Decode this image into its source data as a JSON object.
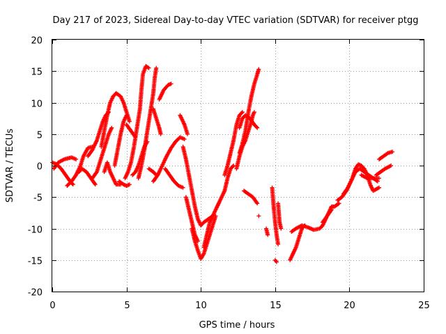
{
  "chart_data": {
    "type": "scatter",
    "title": "Day 217 of 2023, Sidereal Day-to-day VTEC variation (SDTVAR) for receiver ptgg",
    "xlabel": "GPS time / hours",
    "ylabel": "SDTVAR / TECUs",
    "xlim": [
      0,
      25
    ],
    "ylim": [
      -20,
      20
    ],
    "xticks": [
      "0",
      "5",
      "10",
      "15",
      "20",
      "25"
    ],
    "yticks": [
      "-20",
      "-15",
      "-10",
      "-5",
      "0",
      "5",
      "10",
      "15",
      "20"
    ],
    "grid": true,
    "marker": "plus",
    "colors": {
      "series": "#ff0000",
      "grid": "#a0a0a0",
      "axis": "#000000"
    },
    "series": [
      {
        "tracks": [
          [
            [
              0.0,
              0.5
            ],
            [
              0.3,
              0.2
            ],
            [
              0.6,
              -0.5
            ],
            [
              0.9,
              -1.5
            ],
            [
              1.2,
              -2.5
            ],
            [
              1.4,
              -3.0
            ]
          ],
          [
            [
              0.1,
              -0.5
            ],
            [
              0.4,
              0.5
            ],
            [
              0.8,
              1.0
            ],
            [
              1.3,
              1.3
            ],
            [
              1.6,
              1.0
            ]
          ],
          [
            [
              1.0,
              -3.2
            ],
            [
              1.3,
              -2.5
            ],
            [
              1.6,
              -1.5
            ],
            [
              1.9,
              0.0
            ],
            [
              2.1,
              1.5
            ],
            [
              2.4,
              2.8
            ],
            [
              2.7,
              3.0
            ]
          ],
          [
            [
              1.8,
              -1.0
            ],
            [
              2.0,
              -0.5
            ],
            [
              2.3,
              -1.0
            ],
            [
              2.6,
              -2.0
            ],
            [
              2.9,
              -3.0
            ]
          ],
          [
            [
              2.4,
              1.5
            ],
            [
              2.7,
              2.5
            ],
            [
              3.0,
              4.0
            ],
            [
              3.2,
              5.5
            ],
            [
              3.4,
              7.0
            ],
            [
              3.6,
              8.0
            ],
            [
              3.8,
              8.5
            ]
          ],
          [
            [
              2.7,
              -2.0
            ],
            [
              3.0,
              -1.0
            ],
            [
              3.2,
              0.5
            ],
            [
              3.4,
              2.0
            ],
            [
              3.6,
              3.5
            ],
            [
              3.8,
              5.0
            ],
            [
              4.0,
              6.0
            ]
          ],
          [
            [
              3.3,
              3.0
            ],
            [
              3.5,
              5.5
            ],
            [
              3.7,
              8.0
            ],
            [
              3.9,
              10.0
            ],
            [
              4.1,
              11.0
            ],
            [
              4.3,
              11.5
            ],
            [
              4.6,
              11.0
            ],
            [
              4.8,
              10.0
            ],
            [
              5.0,
              8.5
            ],
            [
              5.2,
              7.0
            ]
          ],
          [
            [
              4.2,
              0.0
            ],
            [
              4.4,
              2.5
            ],
            [
              4.6,
              5.0
            ],
            [
              4.8,
              7.0
            ],
            [
              5.0,
              8.0
            ]
          ],
          [
            [
              4.5,
              -2.5
            ],
            [
              4.8,
              -3.0
            ],
            [
              5.0,
              -3.2
            ],
            [
              5.2,
              -3.0
            ]
          ],
          [
            [
              3.5,
              -1.0
            ],
            [
              3.7,
              0.5
            ],
            [
              3.9,
              -1.0
            ],
            [
              4.1,
              -2.0
            ],
            [
              4.3,
              -3.0
            ],
            [
              4.6,
              -3.0
            ]
          ],
          [
            [
              4.9,
              -2.0
            ],
            [
              5.1,
              -1.0
            ],
            [
              5.3,
              0.5
            ],
            [
              5.5,
              3.0
            ],
            [
              5.7,
              6.0
            ],
            [
              5.9,
              9.0
            ],
            [
              6.0,
              12.0
            ],
            [
              6.1,
              14.5
            ],
            [
              6.3,
              15.8
            ],
            [
              6.5,
              15.5
            ]
          ],
          [
            [
              5.8,
              -2.0
            ],
            [
              6.0,
              0.0
            ],
            [
              6.2,
              2.5
            ],
            [
              6.4,
              5.5
            ],
            [
              6.6,
              8.5
            ],
            [
              6.8,
              11.5
            ],
            [
              6.9,
              14.0
            ],
            [
              7.0,
              15.5
            ]
          ],
          [
            [
              5.4,
              -1.5
            ],
            [
              5.6,
              -1.0
            ],
            [
              5.8,
              0.0
            ],
            [
              6.0,
              1.5
            ],
            [
              6.2,
              3.0
            ],
            [
              6.4,
              3.8
            ]
          ],
          [
            [
              5.0,
              6.5
            ],
            [
              5.3,
              5.5
            ],
            [
              5.6,
              4.5
            ]
          ],
          [
            [
              6.5,
              -0.5
            ],
            [
              6.8,
              -1.0
            ],
            [
              7.0,
              -1.5
            ]
          ],
          [
            [
              6.8,
              9.0
            ],
            [
              7.0,
              7.5
            ],
            [
              7.2,
              6.0
            ],
            [
              7.3,
              5.0
            ]
          ],
          [
            [
              7.2,
              10.5
            ],
            [
              7.5,
              12.0
            ],
            [
              7.8,
              12.8
            ],
            [
              8.0,
              13.0
            ]
          ],
          [
            [
              6.8,
              -2.5
            ],
            [
              7.1,
              -1.5
            ],
            [
              7.4,
              0.0
            ],
            [
              7.7,
              1.5
            ],
            [
              8.0,
              2.8
            ],
            [
              8.3,
              3.8
            ],
            [
              8.6,
              4.5
            ],
            [
              8.9,
              4.2
            ]
          ],
          [
            [
              7.6,
              -0.5
            ],
            [
              7.9,
              -1.5
            ],
            [
              8.2,
              -2.5
            ],
            [
              8.5,
              -3.2
            ],
            [
              8.8,
              -3.5
            ]
          ],
          [
            [
              8.6,
              8.0
            ],
            [
              8.9,
              6.5
            ],
            [
              9.1,
              5.0
            ]
          ],
          [
            [
              8.8,
              3.0
            ],
            [
              9.0,
              1.0
            ],
            [
              9.2,
              -1.5
            ],
            [
              9.4,
              -4.0
            ],
            [
              9.6,
              -6.5
            ],
            [
              9.8,
              -8.5
            ],
            [
              10.0,
              -9.5
            ],
            [
              10.2,
              -9.0
            ],
            [
              10.5,
              -8.5
            ],
            [
              10.8,
              -8.0
            ]
          ],
          [
            [
              9.0,
              -5.0
            ],
            [
              9.2,
              -7.0
            ],
            [
              9.4,
              -9.0
            ],
            [
              9.6,
              -11.0
            ],
            [
              9.8,
              -12.0
            ]
          ],
          [
            [
              9.4,
              -10.0
            ],
            [
              9.6,
              -12.0
            ],
            [
              9.8,
              -13.5
            ],
            [
              10.0,
              -14.8
            ],
            [
              10.2,
              -14.0
            ],
            [
              10.4,
              -12.5
            ],
            [
              10.6,
              -11.0
            ],
            [
              10.8,
              -9.5
            ],
            [
              11.0,
              -8.0
            ]
          ],
          [
            [
              10.2,
              -13.0
            ],
            [
              10.4,
              -11.0
            ],
            [
              10.6,
              -9.0
            ],
            [
              10.8,
              -8.0
            ],
            [
              11.0,
              -7.0
            ],
            [
              11.2,
              -6.0
            ],
            [
              11.4,
              -5.0
            ],
            [
              11.6,
              -4.0
            ],
            [
              11.8,
              -2.0
            ],
            [
              12.0,
              -0.5
            ],
            [
              12.2,
              0.0
            ]
          ],
          [
            [
              11.6,
              -1.5
            ],
            [
              11.8,
              0.0
            ],
            [
              12.0,
              2.0
            ],
            [
              12.2,
              4.0
            ],
            [
              12.4,
              6.5
            ],
            [
              12.6,
              8.0
            ],
            [
              12.8,
              8.5
            ]
          ],
          [
            [
              12.4,
              -0.5
            ],
            [
              12.6,
              1.5
            ],
            [
              12.8,
              3.0
            ],
            [
              13.0,
              4.0
            ],
            [
              13.2,
              5.5
            ],
            [
              13.4,
              7.0
            ],
            [
              13.5,
              8.0
            ],
            [
              13.6,
              8.5
            ]
          ],
          [
            [
              12.6,
              6.0
            ],
            [
              12.8,
              7.5
            ],
            [
              13.0,
              8.0
            ],
            [
              13.3,
              7.5
            ],
            [
              13.6,
              6.5
            ],
            [
              13.8,
              6.0
            ]
          ],
          [
            [
              12.6,
              2.0
            ],
            [
              12.8,
              3.5
            ],
            [
              13.0,
              5.5
            ],
            [
              13.2,
              8.5
            ],
            [
              13.4,
              11.0
            ],
            [
              13.6,
              13.0
            ],
            [
              13.8,
              14.5
            ],
            [
              13.9,
              15.3
            ]
          ],
          [
            [
              12.9,
              -4.0
            ],
            [
              13.2,
              -4.5
            ],
            [
              13.5,
              -5.0
            ],
            [
              13.8,
              -6.0
            ]
          ],
          [
            [
              13.9,
              -8.0
            ]
          ],
          [
            [
              14.8,
              -3.5
            ],
            [
              14.9,
              -6.5
            ],
            [
              15.0,
              -9.0
            ],
            [
              15.1,
              -11.0
            ],
            [
              15.2,
              -12.5
            ]
          ],
          [
            [
              15.0,
              -15.0
            ],
            [
              15.1,
              -15.3
            ]
          ],
          [
            [
              14.4,
              -10.0
            ],
            [
              14.5,
              -11.0
            ]
          ],
          [
            [
              15.2,
              -6.0
            ],
            [
              15.3,
              -9.0
            ],
            [
              15.4,
              -10.0
            ]
          ],
          [
            [
              16.0,
              -15.0
            ],
            [
              16.2,
              -14.0
            ],
            [
              16.4,
              -13.0
            ],
            [
              16.6,
              -11.5
            ],
            [
              16.8,
              -10.0
            ],
            [
              17.0,
              -9.5
            ]
          ],
          [
            [
              16.1,
              -10.5
            ],
            [
              16.4,
              -10.0
            ],
            [
              16.8,
              -9.5
            ],
            [
              17.2,
              -9.8
            ],
            [
              17.6,
              -10.2
            ],
            [
              18.0,
              -10.0
            ],
            [
              18.2,
              -9.5
            ],
            [
              18.4,
              -8.5
            ],
            [
              18.6,
              -7.5
            ],
            [
              18.8,
              -6.5
            ],
            [
              19.0,
              -6.5
            ],
            [
              19.3,
              -6.0
            ]
          ],
          [
            [
              18.2,
              -9.0
            ],
            [
              18.5,
              -8.0
            ],
            [
              18.8,
              -7.0
            ]
          ],
          [
            [
              19.2,
              -5.5
            ],
            [
              19.5,
              -5.0
            ],
            [
              19.8,
              -4.0
            ],
            [
              20.1,
              -2.5
            ],
            [
              20.4,
              -1.0
            ],
            [
              20.7,
              -0.5
            ],
            [
              21.0,
              -1.0
            ],
            [
              21.3,
              -1.5
            ],
            [
              21.6,
              -2.0
            ],
            [
              21.9,
              -2.5
            ]
          ],
          [
            [
              19.6,
              -4.5
            ],
            [
              19.9,
              -3.5
            ],
            [
              20.2,
              -2.0
            ],
            [
              20.4,
              -0.5
            ],
            [
              20.6,
              0.2
            ],
            [
              20.8,
              0.0
            ],
            [
              21.0,
              -0.5
            ],
            [
              21.2,
              -1.5
            ],
            [
              21.4,
              -3.0
            ],
            [
              21.6,
              -4.0
            ],
            [
              22.0,
              -3.5
            ]
          ],
          [
            [
              20.8,
              -1.5
            ],
            [
              21.2,
              -2.0
            ],
            [
              21.6,
              -2.0
            ],
            [
              22.0,
              -2.0
            ]
          ],
          [
            [
              21.8,
              -1.5
            ],
            [
              22.1,
              -1.0
            ],
            [
              22.4,
              -0.5
            ],
            [
              22.8,
              0.0
            ]
          ],
          [
            [
              22.0,
              1.0
            ],
            [
              22.3,
              1.5
            ],
            [
              22.6,
              2.0
            ],
            [
              22.9,
              2.2
            ]
          ]
        ]
      }
    ]
  }
}
